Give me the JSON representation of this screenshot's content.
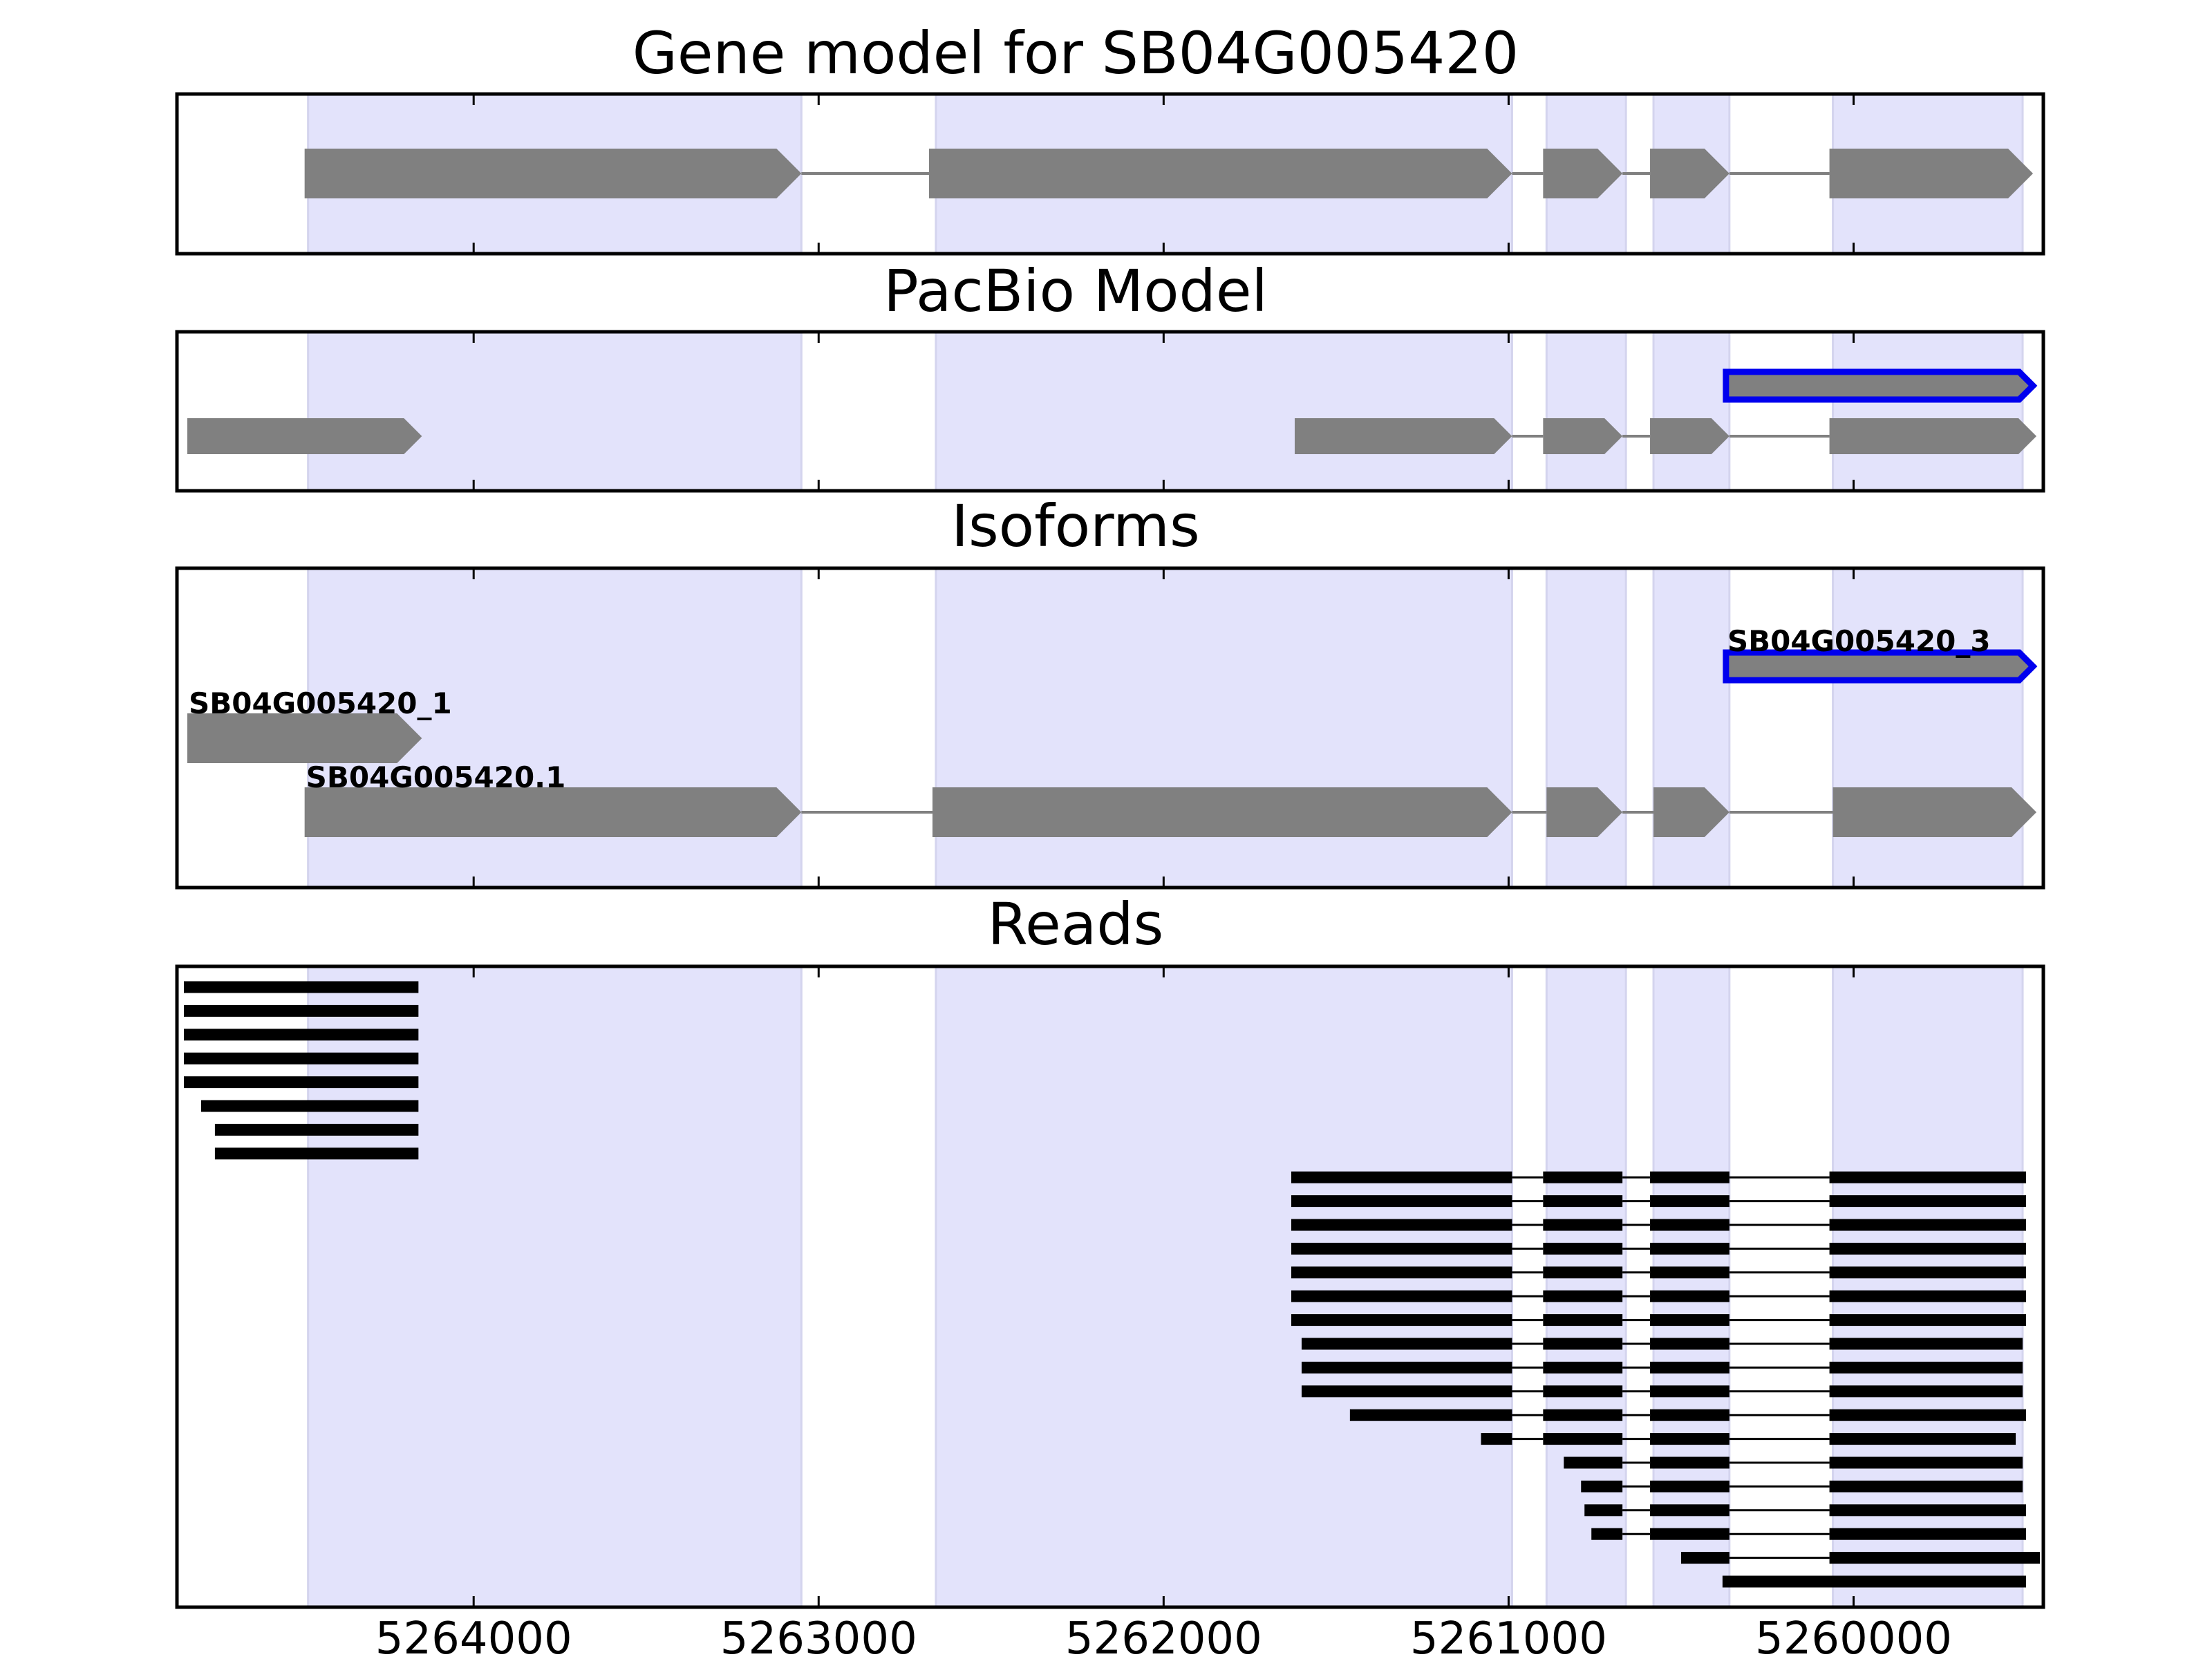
{
  "chart_data": {
    "type": "gene_track",
    "title": "Gene model for SB04G005420",
    "x_axis": {
      "range": [
        5264860,
        5259450
      ],
      "reversed": true,
      "ticks": [
        5264000,
        5263000,
        5262000,
        5261000,
        5260000
      ],
      "tick_labels": [
        "5264000",
        "5263000",
        "5262000",
        "5261000",
        "5260000"
      ]
    },
    "highlight_regions": [
      [
        5264480,
        5263050
      ],
      [
        5262660,
        5260990
      ],
      [
        5260890,
        5260660
      ],
      [
        5260580,
        5260360
      ],
      [
        5260060,
        5259510
      ]
    ],
    "colors": {
      "highlight": "#e3e3fb",
      "exon": "#808080",
      "selected_outline": "#0000ee",
      "read": "#000000",
      "intron": "#808080"
    },
    "panels": [
      {
        "id": "gene-model",
        "title": "Gene model for SB04G005420",
        "models": [
          {
            "row": 0,
            "label": "",
            "selected": false,
            "exons": [
              [
                5264490,
                5263050
              ],
              [
                5262680,
                5260990
              ],
              [
                5260900,
                5260670
              ],
              [
                5260590,
                5260360
              ],
              [
                5260070,
                5259480
              ]
            ]
          }
        ]
      },
      {
        "id": "pacbio-model",
        "title": "PacBio Model",
        "models": [
          {
            "row": 0,
            "label": "",
            "selected": true,
            "exons": [
              [
                5260370,
                5259480
              ]
            ]
          },
          {
            "row": 1,
            "label": "",
            "selected": false,
            "exons": [
              [
                5264830,
                5264150
              ]
            ]
          },
          {
            "row": 1,
            "label": "",
            "selected": false,
            "exons": [
              [
                5261620,
                5260990
              ],
              [
                5260900,
                5260670
              ],
              [
                5260590,
                5260360
              ],
              [
                5260070,
                5259470
              ]
            ]
          }
        ]
      },
      {
        "id": "isoforms",
        "title": "Isoforms",
        "models": [
          {
            "row": 0,
            "label": "SB04G005420_3",
            "selected": true,
            "exons": [
              [
                5260370,
                5259480
              ]
            ]
          },
          {
            "row": 1,
            "label": "SB04G005420_1",
            "selected": false,
            "exons": [
              [
                5264830,
                5264150
              ]
            ]
          },
          {
            "row": 2,
            "label": "SB04G005420.1",
            "selected": false,
            "exons": [
              [
                5264490,
                5263050
              ],
              [
                5262670,
                5260990
              ],
              [
                5260890,
                5260670
              ],
              [
                5260580,
                5260360
              ],
              [
                5260060,
                5259470
              ]
            ]
          }
        ]
      },
      {
        "id": "reads",
        "title": "Reads",
        "reads": [
          [
            [
              5264840,
              5264160
            ]
          ],
          [
            [
              5264840,
              5264160
            ]
          ],
          [
            [
              5264840,
              5264160
            ]
          ],
          [
            [
              5264840,
              5264160
            ]
          ],
          [
            [
              5264840,
              5264160
            ]
          ],
          [
            [
              5264790,
              5264160
            ]
          ],
          [
            [
              5264750,
              5264160
            ]
          ],
          [
            [
              5264750,
              5264160
            ]
          ],
          [
            [
              5261630,
              5260990
            ],
            [
              5260900,
              5260670
            ],
            [
              5260590,
              5260360
            ],
            [
              5260070,
              5259500
            ]
          ],
          [
            [
              5261630,
              5260990
            ],
            [
              5260900,
              5260670
            ],
            [
              5260590,
              5260360
            ],
            [
              5260070,
              5259500
            ]
          ],
          [
            [
              5261630,
              5260990
            ],
            [
              5260900,
              5260670
            ],
            [
              5260590,
              5260360
            ],
            [
              5260070,
              5259500
            ]
          ],
          [
            [
              5261630,
              5260990
            ],
            [
              5260900,
              5260670
            ],
            [
              5260590,
              5260360
            ],
            [
              5260070,
              5259500
            ]
          ],
          [
            [
              5261630,
              5260990
            ],
            [
              5260900,
              5260670
            ],
            [
              5260590,
              5260360
            ],
            [
              5260070,
              5259500
            ]
          ],
          [
            [
              5261630,
              5260990
            ],
            [
              5260900,
              5260670
            ],
            [
              5260590,
              5260360
            ],
            [
              5260070,
              5259500
            ]
          ],
          [
            [
              5261630,
              5260990
            ],
            [
              5260900,
              5260670
            ],
            [
              5260590,
              5260360
            ],
            [
              5260070,
              5259500
            ]
          ],
          [
            [
              5261600,
              5260990
            ],
            [
              5260900,
              5260670
            ],
            [
              5260590,
              5260360
            ],
            [
              5260070,
              5259510
            ]
          ],
          [
            [
              5261600,
              5260990
            ],
            [
              5260900,
              5260670
            ],
            [
              5260590,
              5260360
            ],
            [
              5260070,
              5259510
            ]
          ],
          [
            [
              5261600,
              5260990
            ],
            [
              5260900,
              5260670
            ],
            [
              5260590,
              5260360
            ],
            [
              5260070,
              5259510
            ]
          ],
          [
            [
              5261460,
              5260990
            ],
            [
              5260900,
              5260670
            ],
            [
              5260590,
              5260360
            ],
            [
              5260070,
              5259500
            ]
          ],
          [
            [
              5261080,
              5260990
            ],
            [
              5260900,
              5260670
            ],
            [
              5260590,
              5260360
            ],
            [
              5260070,
              5259530
            ]
          ],
          [
            [
              5260840,
              5260670
            ],
            [
              5260590,
              5260360
            ],
            [
              5260070,
              5259510
            ]
          ],
          [
            [
              5260790,
              5260670
            ],
            [
              5260590,
              5260360
            ],
            [
              5260070,
              5259510
            ]
          ],
          [
            [
              5260780,
              5260670
            ],
            [
              5260590,
              5260360
            ],
            [
              5260070,
              5259500
            ]
          ],
          [
            [
              5260760,
              5260670
            ],
            [
              5260590,
              5260360
            ],
            [
              5260070,
              5259500
            ]
          ],
          [
            [
              5260500,
              5260360
            ],
            [
              5260070,
              5259460
            ]
          ],
          [
            [
              5260380,
              5259500
            ]
          ]
        ]
      }
    ]
  }
}
